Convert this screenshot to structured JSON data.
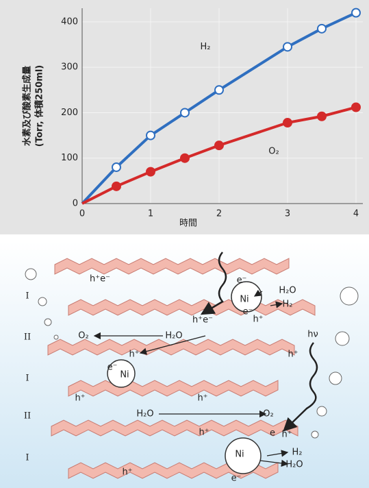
{
  "chart_data": {
    "type": "line",
    "xlabel": "時間",
    "ylabel": [
      "水素及び酸素生成量",
      "(Torr, 体積250ml)"
    ],
    "x": [
      0,
      0.5,
      1,
      1.5,
      2,
      3,
      3.5,
      4
    ],
    "xlim": [
      0,
      4.1
    ],
    "xticks": [
      0,
      1,
      2,
      3,
      4
    ],
    "ylim": [
      0,
      430
    ],
    "yticks": [
      0,
      100,
      200,
      300,
      400
    ],
    "grid": true,
    "series": [
      {
        "name": "H₂",
        "color": "#2f6fc0",
        "marker_fill": "#ffffff",
        "values": [
          0,
          80,
          150,
          200,
          250,
          345,
          385,
          420
        ]
      },
      {
        "name": "O₂",
        "color": "#d42a2a",
        "marker_fill": "#d42a2a",
        "values": [
          0,
          38,
          70,
          100,
          128,
          178,
          192,
          212
        ]
      }
    ]
  },
  "diagram": {
    "labels": [
      "I",
      "II",
      "I",
      "II",
      "I",
      "h⁺e⁻",
      "e⁻",
      "Ni",
      "e⁻",
      "h⁺",
      "H₂O",
      "H₂",
      "h⁺e⁻",
      "O₂",
      "H₂O",
      "h⁺",
      "e⁻",
      "Ni",
      "h⁺",
      "h⁺",
      "h⁺",
      "H₂O",
      "O₂",
      "h⁺",
      "e",
      "h⁺",
      "hν",
      "Ni",
      "H₂",
      "H₂O",
      "e⁻",
      "h⁺"
    ]
  }
}
